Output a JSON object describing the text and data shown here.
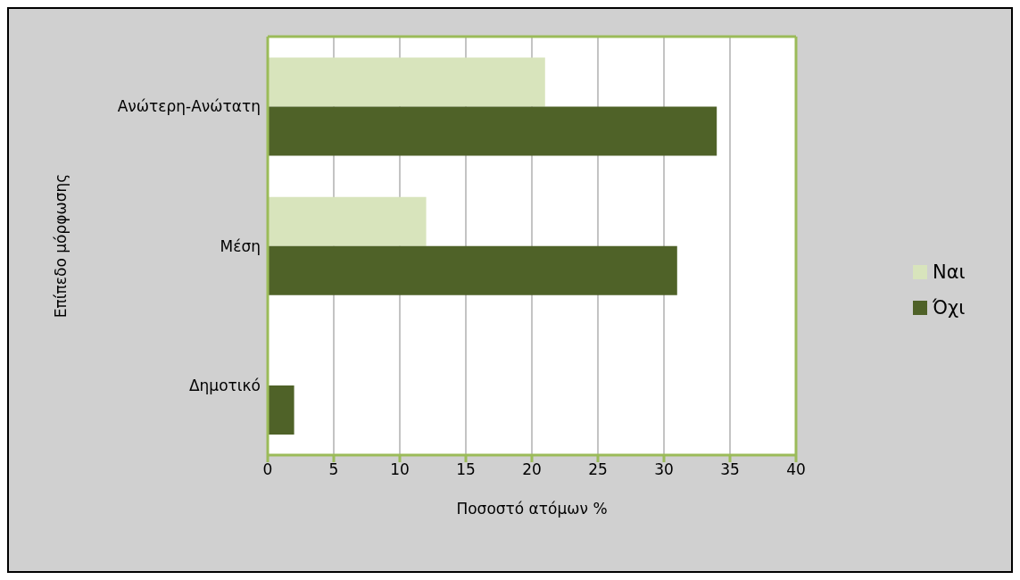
{
  "chart_data": {
    "type": "bar",
    "orientation": "horizontal",
    "xlabel": "Ποσοστό ατόμων %",
    "ylabel": "Επίπεδο μόρφωσης",
    "categories": [
      "Ανώτερη-Ανώτατη",
      "Μέση",
      "Δημοτικό"
    ],
    "series": [
      {
        "name": "Ναι",
        "color": "#d8e4bc",
        "values": [
          21,
          12,
          0
        ]
      },
      {
        "name": "Όχι",
        "color": "#4f6228",
        "values": [
          34,
          31,
          2
        ]
      }
    ],
    "xlim": [
      0,
      40
    ],
    "xticks": [
      0,
      5,
      10,
      15,
      20,
      25,
      30,
      35,
      40
    ],
    "grid": "x",
    "legend": "right"
  }
}
